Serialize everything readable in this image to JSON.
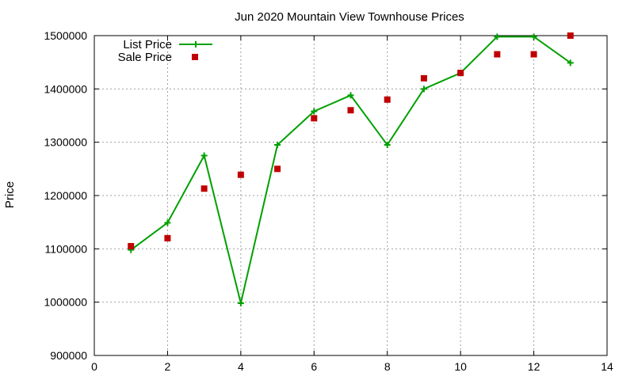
{
  "chart_data": {
    "type": "line",
    "title": "Jun 2020 Mountain View Townhouse Prices",
    "xlabel": "",
    "ylabel": "Price",
    "xlim": [
      0,
      14
    ],
    "ylim": [
      900000,
      1500000
    ],
    "x_ticks": [
      0,
      2,
      4,
      6,
      8,
      10,
      12,
      14
    ],
    "y_ticks": [
      900000,
      1000000,
      1100000,
      1200000,
      1300000,
      1400000,
      1500000
    ],
    "grid": true,
    "legend_position": "top-left",
    "series": [
      {
        "name": "List Price",
        "style": "line with plus markers",
        "color": "#00a000",
        "x": [
          1,
          2,
          3,
          4,
          5,
          6,
          7,
          8,
          9,
          10,
          11,
          12,
          13
        ],
        "y": [
          1098000,
          1149000,
          1275000,
          998000,
          1295000,
          1358000,
          1388000,
          1295000,
          1400000,
          1430000,
          1498000,
          1498000,
          1449000
        ]
      },
      {
        "name": "Sale Price",
        "style": "square markers",
        "color": "#c00000",
        "x": [
          1,
          2,
          3,
          4,
          5,
          6,
          7,
          8,
          9,
          10,
          11,
          12,
          13
        ],
        "y": [
          1105000,
          1120000,
          1213000,
          1239000,
          1250000,
          1345000,
          1360000,
          1380000,
          1420000,
          1430000,
          1465000,
          1465000,
          1500000
        ]
      }
    ]
  }
}
